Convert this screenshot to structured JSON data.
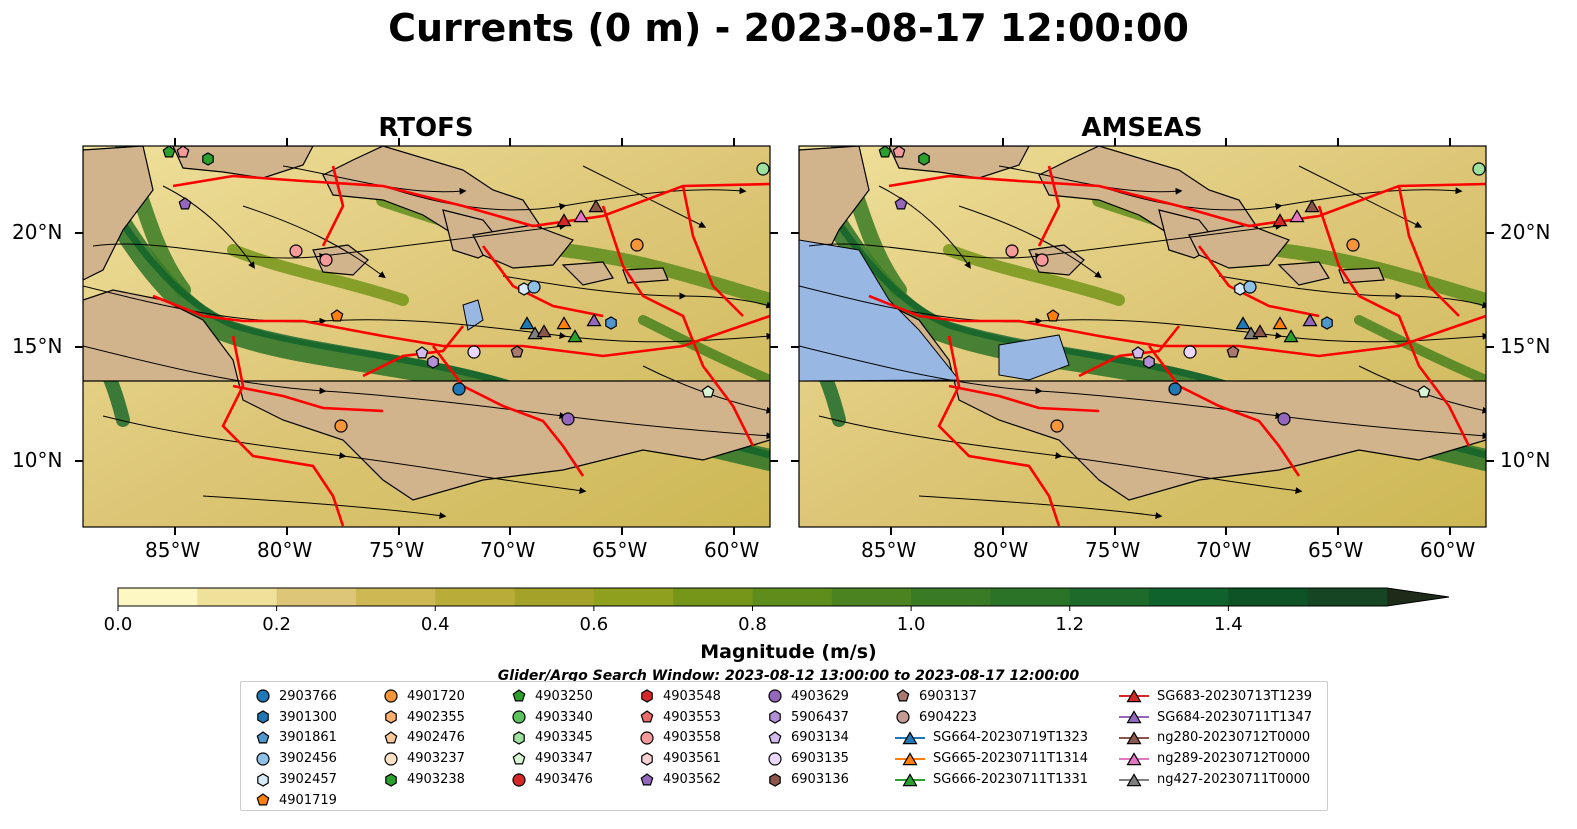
{
  "title": "Currents (0 m) - 2023-08-17 12:00:00",
  "panels": [
    {
      "name": "RTOFS"
    },
    {
      "name": "AMSEAS"
    }
  ],
  "axes": {
    "lon_ticks": [
      "85°W",
      "80°W",
      "75°W",
      "70°W",
      "65°W",
      "60°W"
    ],
    "lat_ticks": [
      "20°N",
      "15°N",
      "10°N"
    ]
  },
  "colorbar": {
    "label": "Magnitude (m/s)",
    "ticks": [
      "0.0",
      "0.2",
      "0.4",
      "0.6",
      "0.8",
      "1.0",
      "1.2",
      "1.4"
    ],
    "colors": [
      "#fdf7c3",
      "#efe09a",
      "#ddc677",
      "#cdb854",
      "#b9ac38",
      "#a5a22a",
      "#8ea01e",
      "#76961a",
      "#5e8d1c",
      "#4a831f",
      "#397b24",
      "#2b7327",
      "#1d6a2b",
      "#10622c",
      "#0e5326",
      "#154522",
      "#1a371d",
      "#1d2b18"
    ]
  },
  "search_window": "Glider/Argo Search Window: 2023-08-12 13:00:00 to 2023-08-17 12:00:00",
  "legend": [
    [
      {
        "label": "2903766",
        "marker": "circle",
        "color": "#1f77b4"
      },
      {
        "label": "3901300",
        "marker": "hexagon",
        "color": "#1f77b4"
      },
      {
        "label": "3901861",
        "marker": "pentagon",
        "color": "#4f97cc"
      },
      {
        "label": "3902456",
        "marker": "circle",
        "color": "#8ec0e8"
      },
      {
        "label": "3902457",
        "marker": "hexagon",
        "color": "#d6eaf8"
      },
      {
        "label": "4901719",
        "marker": "pentagon",
        "color": "#ff7f0e"
      }
    ],
    [
      {
        "label": "4901720",
        "marker": "circle",
        "color": "#f7953a"
      },
      {
        "label": "4902355",
        "marker": "hexagon",
        "color": "#fbae6e"
      },
      {
        "label": "4902476",
        "marker": "pentagon",
        "color": "#fcc99a"
      },
      {
        "label": "4903237",
        "marker": "circle",
        "color": "#fde3c5"
      },
      {
        "label": "4903238",
        "marker": "hexagon",
        "color": "#2ca02c"
      }
    ],
    [
      {
        "label": "4903250",
        "marker": "pentagon",
        "color": "#2ca02c"
      },
      {
        "label": "4903340",
        "marker": "circle",
        "color": "#5cc45c"
      },
      {
        "label": "4903345",
        "marker": "hexagon",
        "color": "#9ee09e"
      },
      {
        "label": "4903347",
        "marker": "pentagon",
        "color": "#d7f5d2"
      },
      {
        "label": "4903476",
        "marker": "circle",
        "color": "#d62728"
      }
    ],
    [
      {
        "label": "4903548",
        "marker": "hexagon",
        "color": "#d62728"
      },
      {
        "label": "4903553",
        "marker": "pentagon",
        "color": "#ec6a6a"
      },
      {
        "label": "4903558",
        "marker": "circle",
        "color": "#f59a9a"
      },
      {
        "label": "4903561",
        "marker": "hexagon",
        "color": "#fbd0d0"
      },
      {
        "label": "4903562",
        "marker": "pentagon",
        "color": "#9467bd"
      }
    ],
    [
      {
        "label": "4903629",
        "marker": "circle",
        "color": "#9467bd"
      },
      {
        "label": "5906437",
        "marker": "hexagon",
        "color": "#b38fd6"
      },
      {
        "label": "6903134",
        "marker": "pentagon",
        "color": "#d3bbf0"
      },
      {
        "label": "6903135",
        "marker": "circle",
        "color": "#ecd8fb"
      },
      {
        "label": "6903136",
        "marker": "hexagon",
        "color": "#8c564b"
      }
    ],
    [
      {
        "label": "6903137",
        "marker": "pentagon",
        "color": "#a9786e"
      },
      {
        "label": "6904223",
        "marker": "circle",
        "color": "#c49c94"
      },
      {
        "label": "SG664-20230719T1323",
        "marker": "triangle",
        "color": "#1f77b4"
      },
      {
        "label": "SG665-20230711T1314",
        "marker": "triangle",
        "color": "#ff7f0e"
      },
      {
        "label": "SG666-20230711T1331",
        "marker": "triangle",
        "color": "#2ca02c"
      }
    ],
    [
      {
        "label": "SG683-20230713T1239",
        "marker": "triangle",
        "color": "#d62728"
      },
      {
        "label": "SG684-20230711T1347",
        "marker": "triangle",
        "color": "#9467bd"
      },
      {
        "label": "ng280-20230712T0000",
        "marker": "triangle",
        "color": "#8c564b"
      },
      {
        "label": "ng289-20230712T0000",
        "marker": "triangle",
        "color": "#e377c2"
      },
      {
        "label": "ng427-20230711T0000",
        "marker": "triangle",
        "color": "#7f7f7f"
      }
    ]
  ],
  "colors": {
    "land": "#d2b48c",
    "boundary": "#ff0000",
    "stream": "#000000",
    "ocean_lowres": "#98b7e2"
  }
}
